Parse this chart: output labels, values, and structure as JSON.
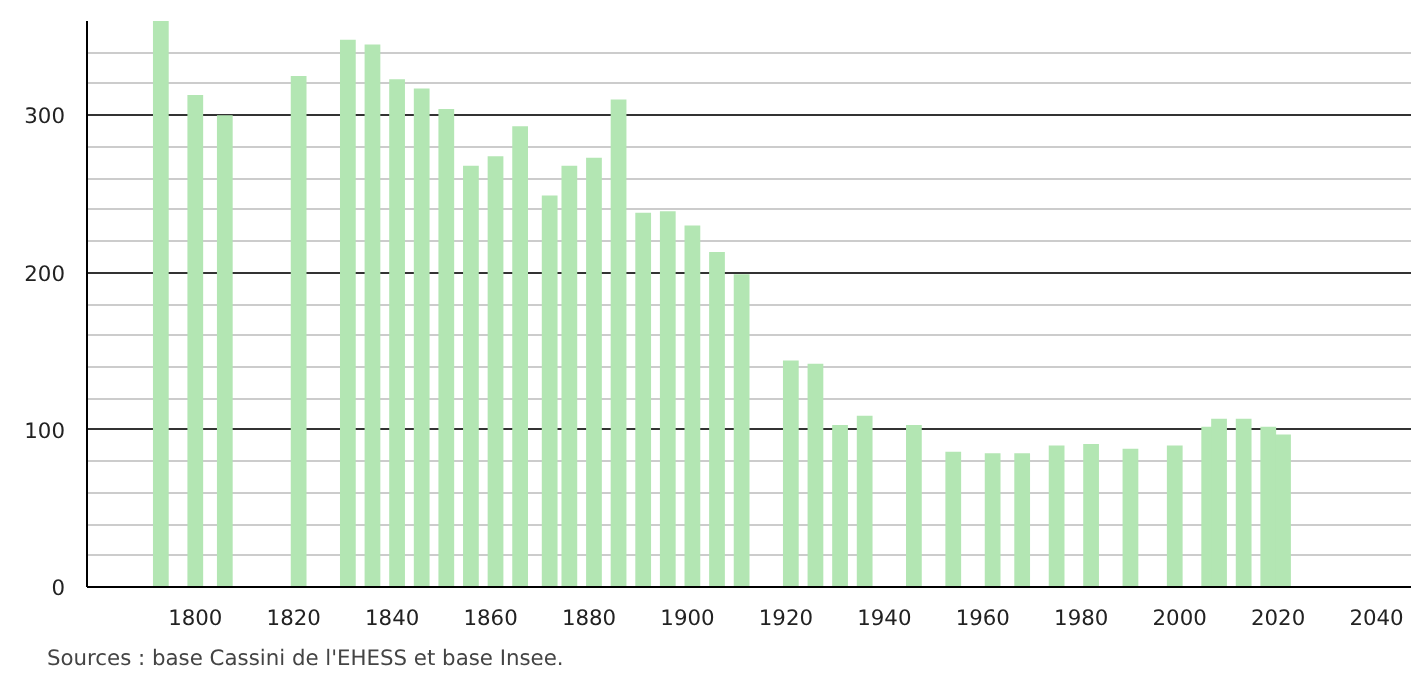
{
  "chart_data": {
    "type": "bar",
    "x": [
      1793,
      1800,
      1806,
      1821,
      1831,
      1836,
      1841,
      1846,
      1851,
      1856,
      1861,
      1866,
      1872,
      1876,
      1881,
      1886,
      1891,
      1896,
      1901,
      1906,
      1911,
      1921,
      1926,
      1931,
      1936,
      1946,
      1954,
      1962,
      1968,
      1975,
      1982,
      1990,
      1999,
      2006,
      2008,
      2013,
      2018,
      2021
    ],
    "values": [
      360,
      313,
      300,
      325,
      348,
      345,
      323,
      317,
      304,
      268,
      274,
      293,
      249,
      268,
      273,
      310,
      238,
      239,
      230,
      213,
      199,
      144,
      142,
      103,
      109,
      103,
      86,
      85,
      85,
      90,
      91,
      88,
      90,
      102,
      107,
      107,
      102,
      97
    ],
    "color": "#b3e6b3",
    "xlim": [
      1778,
      2047
    ],
    "xticks": [
      1800,
      1820,
      1840,
      1860,
      1880,
      1900,
      1920,
      1940,
      1960,
      1980,
      2000,
      2020,
      2040
    ],
    "ylim": [
      0,
      360
    ],
    "yticks": [
      0,
      100,
      200,
      300
    ],
    "grid": "y",
    "annotations": [
      "Sources : base Cassini de l'EHESS et base Insee."
    ]
  }
}
